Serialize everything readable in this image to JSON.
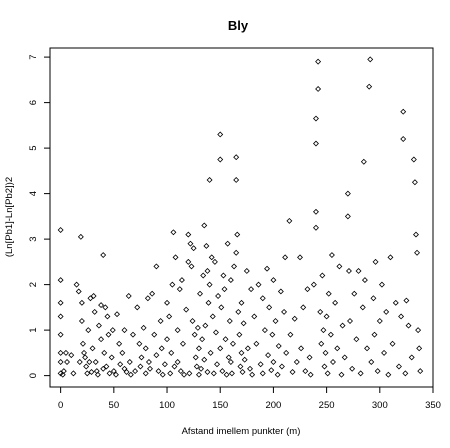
{
  "chart_data": {
    "type": "scatter",
    "title": "Bly",
    "xlabel": "Afstand imellem punkter (m)",
    "ylabel": "(Ln[Pb1]-Ln[Pb2])2",
    "xlim": [
      -10,
      350
    ],
    "ylim": [
      -0.25,
      7.2
    ],
    "xticks": [
      0,
      50,
      100,
      150,
      200,
      250,
      300,
      350
    ],
    "yticks": [
      0,
      1,
      2,
      3,
      4,
      5,
      6,
      7
    ],
    "marker": "open-diamond",
    "grid": false,
    "points": [
      [
        0,
        3.2
      ],
      [
        0,
        2.1
      ],
      [
        0,
        1.6
      ],
      [
        0,
        1.3
      ],
      [
        0,
        0.9
      ],
      [
        0,
        0.5
      ],
      [
        0,
        0.3
      ],
      [
        0,
        0.05
      ],
      [
        2,
        0.02
      ],
      [
        3,
        0.1
      ],
      [
        5,
        0.5
      ],
      [
        6,
        0.3
      ],
      [
        10,
        0.45
      ],
      [
        12,
        0.05
      ],
      [
        15,
        2.0
      ],
      [
        17,
        1.85
      ],
      [
        18,
        0.3
      ],
      [
        19,
        3.05
      ],
      [
        20,
        1.6
      ],
      [
        20,
        1.2
      ],
      [
        21,
        0.7
      ],
      [
        22,
        0.5
      ],
      [
        23,
        0.4
      ],
      [
        24,
        0.2
      ],
      [
        25,
        0.05
      ],
      [
        26,
        1.0
      ],
      [
        27,
        0.3
      ],
      [
        28,
        1.7
      ],
      [
        29,
        0.08
      ],
      [
        30,
        0.6
      ],
      [
        31,
        1.75
      ],
      [
        32,
        1.4
      ],
      [
        33,
        0.3
      ],
      [
        34,
        0.1
      ],
      [
        35,
        0.02
      ],
      [
        36,
        1.1
      ],
      [
        38,
        1.55
      ],
      [
        38,
        0.8
      ],
      [
        40,
        0.15
      ],
      [
        40,
        2.65
      ],
      [
        41,
        0.5
      ],
      [
        42,
        1.5
      ],
      [
        43,
        0.2
      ],
      [
        44,
        1.3
      ],
      [
        45,
        0.9
      ],
      [
        46,
        0.05
      ],
      [
        48,
        0.4
      ],
      [
        49,
        1.0
      ],
      [
        50,
        0.1
      ],
      [
        52,
        0.02
      ],
      [
        53,
        1.35
      ],
      [
        55,
        0.7
      ],
      [
        56,
        0.25
      ],
      [
        58,
        0.5
      ],
      [
        60,
        0.15
      ],
      [
        60,
        1.0
      ],
      [
        62,
        0.08
      ],
      [
        64,
        1.75
      ],
      [
        65,
        0.3
      ],
      [
        66,
        0.02
      ],
      [
        68,
        0.9
      ],
      [
        70,
        0.1
      ],
      [
        72,
        1.5
      ],
      [
        74,
        0.7
      ],
      [
        75,
        0.2
      ],
      [
        76,
        0.4
      ],
      [
        78,
        1.05
      ],
      [
        80,
        0.6
      ],
      [
        80,
        0.05
      ],
      [
        82,
        1.7
      ],
      [
        83,
        0.3
      ],
      [
        84,
        0.15
      ],
      [
        86,
        1.8
      ],
      [
        88,
        0.9
      ],
      [
        90,
        2.4
      ],
      [
        90,
        0.45
      ],
      [
        92,
        0.1
      ],
      [
        94,
        1.2
      ],
      [
        95,
        0.6
      ],
      [
        96,
        0.02
      ],
      [
        98,
        0.25
      ],
      [
        100,
        1.6
      ],
      [
        100,
        0.8
      ],
      [
        102,
        1.3
      ],
      [
        103,
        0.05
      ],
      [
        104,
        0.5
      ],
      [
        105,
        2.0
      ],
      [
        106,
        3.15
      ],
      [
        107,
        0.2
      ],
      [
        108,
        2.6
      ],
      [
        110,
        1.0
      ],
      [
        110,
        0.3
      ],
      [
        112,
        1.9
      ],
      [
        113,
        0.1
      ],
      [
        114,
        2.1
      ],
      [
        115,
        0.7
      ],
      [
        116,
        0.02
      ],
      [
        118,
        1.45
      ],
      [
        120,
        2.5
      ],
      [
        120,
        3.1
      ],
      [
        121,
        0.05
      ],
      [
        122,
        2.9
      ],
      [
        123,
        2.4
      ],
      [
        124,
        1.2
      ],
      [
        125,
        2.8
      ],
      [
        126,
        0.9
      ],
      [
        127,
        0.4
      ],
      [
        128,
        0.2
      ],
      [
        129,
        1.05
      ],
      [
        130,
        0.6
      ],
      [
        130,
        0.02
      ],
      [
        131,
        1.8
      ],
      [
        132,
        0.15
      ],
      [
        133,
        0.8
      ],
      [
        134,
        2.2
      ],
      [
        135,
        3.3
      ],
      [
        135,
        0.35
      ],
      [
        136,
        1.1
      ],
      [
        137,
        2.85
      ],
      [
        138,
        2.3
      ],
      [
        138,
        0.08
      ],
      [
        139,
        1.6
      ],
      [
        140,
        2.0
      ],
      [
        140,
        4.3
      ],
      [
        141,
        0.5
      ],
      [
        142,
        2.6
      ],
      [
        143,
        1.3
      ],
      [
        144,
        0.05
      ],
      [
        145,
        2.5
      ],
      [
        146,
        0.95
      ],
      [
        147,
        0.25
      ],
      [
        148,
        1.75
      ],
      [
        150,
        4.75
      ],
      [
        150,
        5.3
      ],
      [
        150,
        0.6
      ],
      [
        151,
        1.5
      ],
      [
        152,
        0.1
      ],
      [
        153,
        2.2
      ],
      [
        154,
        1.9
      ],
      [
        155,
        0.8
      ],
      [
        156,
        0.02
      ],
      [
        157,
        2.9
      ],
      [
        158,
        0.4
      ],
      [
        159,
        1.2
      ],
      [
        160,
        0.3
      ],
      [
        160,
        2.1
      ],
      [
        161,
        0.05
      ],
      [
        162,
        0.7
      ],
      [
        163,
        2.4
      ],
      [
        165,
        4.3
      ],
      [
        165,
        4.8
      ],
      [
        165,
        2.7
      ],
      [
        166,
        3.1
      ],
      [
        167,
        1.4
      ],
      [
        168,
        0.9
      ],
      [
        169,
        0.2
      ],
      [
        170,
        0.5
      ],
      [
        170,
        1.6
      ],
      [
        171,
        0.08
      ],
      [
        172,
        1.15
      ],
      [
        173,
        0.35
      ],
      [
        175,
        2.3
      ],
      [
        176,
        0.6
      ],
      [
        178,
        0.15
      ],
      [
        179,
        1.9
      ],
      [
        180,
        0.02
      ],
      [
        182,
        1.3
      ],
      [
        184,
        0.7
      ],
      [
        186,
        2.0
      ],
      [
        188,
        0.25
      ],
      [
        190,
        1.7
      ],
      [
        190,
        0.05
      ],
      [
        192,
        1.0
      ],
      [
        194,
        2.35
      ],
      [
        195,
        0.45
      ],
      [
        196,
        1.5
      ],
      [
        198,
        0.12
      ],
      [
        199,
        0.9
      ],
      [
        200,
        2.1
      ],
      [
        200,
        0.3
      ],
      [
        202,
        1.2
      ],
      [
        204,
        0.02
      ],
      [
        205,
        0.65
      ],
      [
        207,
        1.85
      ],
      [
        208,
        0.2
      ],
      [
        210,
        1.4
      ],
      [
        211,
        2.6
      ],
      [
        212,
        0.5
      ],
      [
        215,
        3.4
      ],
      [
        216,
        0.9
      ],
      [
        218,
        0.08
      ],
      [
        220,
        1.25
      ],
      [
        222,
        0.3
      ],
      [
        225,
        2.6
      ],
      [
        226,
        0.6
      ],
      [
        228,
        1.5
      ],
      [
        230,
        0.1
      ],
      [
        232,
        1.9
      ],
      [
        234,
        0.4
      ],
      [
        235,
        0.02
      ],
      [
        238,
        2.0
      ],
      [
        240,
        3.6
      ],
      [
        240,
        3.25
      ],
      [
        240,
        5.1
      ],
      [
        240,
        5.65
      ],
      [
        242,
        6.9
      ],
      [
        242,
        6.3
      ],
      [
        244,
        1.4
      ],
      [
        245,
        0.7
      ],
      [
        246,
        2.2
      ],
      [
        247,
        1.0
      ],
      [
        248,
        0.2
      ],
      [
        249,
        0.5
      ],
      [
        250,
        1.3
      ],
      [
        251,
        0.05
      ],
      [
        252,
        1.8
      ],
      [
        254,
        0.9
      ],
      [
        255,
        2.65
      ],
      [
        256,
        0.3
      ],
      [
        258,
        1.6
      ],
      [
        260,
        0.6
      ],
      [
        262,
        2.4
      ],
      [
        264,
        0.02
      ],
      [
        265,
        1.1
      ],
      [
        267,
        0.4
      ],
      [
        270,
        4.0
      ],
      [
        270,
        3.5
      ],
      [
        271,
        2.3
      ],
      [
        272,
        1.2
      ],
      [
        274,
        0.15
      ],
      [
        276,
        1.8
      ],
      [
        278,
        0.8
      ],
      [
        280,
        2.3
      ],
      [
        282,
        0.05
      ],
      [
        284,
        1.5
      ],
      [
        285,
        4.7
      ],
      [
        286,
        2.1
      ],
      [
        288,
        0.6
      ],
      [
        290,
        6.35
      ],
      [
        291,
        6.95
      ],
      [
        292,
        0.3
      ],
      [
        294,
        1.7
      ],
      [
        295,
        0.9
      ],
      [
        296,
        2.5
      ],
      [
        298,
        0.1
      ],
      [
        300,
        1.2
      ],
      [
        302,
        2.0
      ],
      [
        304,
        0.5
      ],
      [
        306,
        1.4
      ],
      [
        308,
        0.02
      ],
      [
        310,
        2.6
      ],
      [
        312,
        0.7
      ],
      [
        315,
        1.6
      ],
      [
        318,
        0.2
      ],
      [
        320,
        1.3
      ],
      [
        322,
        5.8
      ],
      [
        322,
        5.2
      ],
      [
        324,
        0.05
      ],
      [
        325,
        1.65
      ],
      [
        327,
        1.1
      ],
      [
        330,
        0.4
      ],
      [
        332,
        4.75
      ],
      [
        333,
        4.25
      ],
      [
        334,
        3.1
      ],
      [
        335,
        2.7
      ],
      [
        336,
        1.0
      ],
      [
        337,
        0.6
      ],
      [
        338,
        0.1
      ]
    ]
  }
}
